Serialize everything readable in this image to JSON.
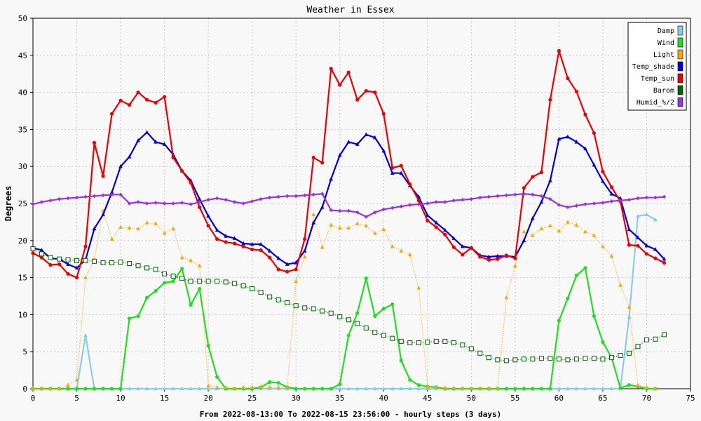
{
  "chart_data": {
    "type": "line",
    "title": "Weather in Essex",
    "xlabel": "From 2022-08-13:00 To 2022-08-15 23:56:00 - hourly steps (3 days)",
    "ylabel": "Degrees",
    "xlim": [
      0,
      75
    ],
    "ylim": [
      0,
      50
    ],
    "x_ticks": [
      0,
      5,
      10,
      15,
      20,
      25,
      30,
      35,
      40,
      45,
      50,
      55,
      60,
      65,
      70,
      75
    ],
    "y_ticks": [
      0,
      5,
      10,
      15,
      20,
      25,
      30,
      35,
      40,
      45,
      50
    ],
    "grid": true,
    "legend_position": "top-right",
    "series": [
      {
        "name": "Damp",
        "color": "#87ceeb",
        "marker": "triangle",
        "style": "solid",
        "values": [
          0,
          0,
          0,
          0,
          0,
          0,
          7.2,
          0,
          0,
          0,
          0,
          0,
          0,
          0,
          0,
          0,
          0,
          0,
          0,
          0,
          0,
          0,
          0,
          0,
          0,
          0,
          0,
          0,
          0,
          0,
          0,
          0,
          0,
          0,
          0,
          0,
          0,
          0,
          0,
          0,
          0,
          0,
          0,
          0,
          0,
          0,
          0,
          0,
          0,
          0,
          0,
          0,
          0,
          0,
          0,
          0,
          0,
          0,
          0,
          0,
          0,
          0,
          0,
          0,
          0,
          0,
          0,
          0,
          9.7,
          23.3,
          23.5,
          22.8
        ]
      },
      {
        "name": "Wind",
        "color": "#22dd22",
        "marker": "circle",
        "style": "solid",
        "values": [
          0,
          0,
          0,
          0,
          0,
          0,
          0,
          0,
          0,
          0,
          0,
          9.5,
          9.8,
          12.3,
          13.2,
          14.3,
          14.5,
          16.2,
          11.3,
          13.5,
          5.8,
          1.6,
          0,
          0,
          0,
          0,
          0.2,
          0.9,
          0.8,
          0.2,
          0,
          0,
          0,
          0,
          0,
          0.6,
          7.2,
          10.2,
          14.9,
          9.8,
          10.8,
          11.4,
          3.8,
          1.2,
          0.5,
          0.3,
          0.2,
          0,
          0,
          0,
          0,
          0,
          0,
          0,
          0,
          0,
          0,
          0,
          0,
          0,
          9.2,
          12.2,
          15.3,
          16.3,
          9.8,
          6.3,
          4.2,
          0.1,
          0.5,
          0.3,
          0,
          0
        ]
      },
      {
        "name": "Light",
        "color": "#ffa500",
        "marker": "triangle",
        "style": "dotted",
        "values": [
          0,
          0,
          0,
          0,
          0.5,
          1.2,
          15,
          17.5,
          24,
          20.2,
          21.8,
          21.7,
          21.6,
          22.4,
          22.3,
          21,
          21.6,
          17.7,
          17.3,
          16.6,
          0.4,
          0.2,
          0.2,
          0,
          0.2,
          0.2,
          0.3,
          0.2,
          0.2,
          0.2,
          14.5,
          17.8,
          23.5,
          19.1,
          22.1,
          21.7,
          21.7,
          22.3,
          22,
          21,
          21.5,
          19.2,
          18.6,
          18.1,
          13.6,
          0.3,
          0.2,
          0.1,
          0.1,
          0,
          0,
          0,
          0,
          0,
          12.3,
          16.6,
          21.2,
          20.7,
          21.6,
          22,
          21.3,
          22.5,
          22.1,
          21.2,
          20.7,
          19.2,
          17.9,
          14,
          11,
          0.5,
          0.2,
          0
        ]
      },
      {
        "name": "Temp_shade",
        "color": "#0000dd",
        "marker": "triangle",
        "style": "solid",
        "values": [
          19,
          18.7,
          17.6,
          17.5,
          16.8,
          16.3,
          17.4,
          21.6,
          23.5,
          26.5,
          30,
          31.3,
          33.5,
          34.6,
          33.3,
          33,
          31.6,
          29.4,
          28.1,
          25.6,
          23.3,
          21.4,
          20.6,
          20.3,
          19.6,
          19.5,
          19.5,
          18.6,
          17.6,
          16.8,
          17,
          18.6,
          22.4,
          24.5,
          28.3,
          31.5,
          33.3,
          33,
          34.3,
          33.9,
          32.1,
          29.1,
          29.1,
          27.4,
          25.9,
          23.4,
          22.4,
          21.4,
          20.3,
          19.2,
          19,
          18,
          17.8,
          17.9,
          17.9,
          17.8,
          20,
          23,
          25.2,
          28.1,
          33.7,
          34,
          33.3,
          32.4,
          30.2,
          28,
          26.3,
          25.7,
          21.5,
          20.4,
          19.3,
          18.8,
          17.5
        ]
      },
      {
        "name": "Temp_sun",
        "color": "#ee0000",
        "marker": "circle",
        "style": "solid",
        "values": [
          18.3,
          17.7,
          16.7,
          16.8,
          15.5,
          15,
          19.2,
          33.2,
          28.7,
          37.1,
          38.9,
          38.3,
          40,
          39,
          38.6,
          39.4,
          31.2,
          29.4,
          27.8,
          24.5,
          22,
          20.2,
          19.8,
          19.6,
          19.2,
          18.8,
          18.7,
          17.7,
          16.1,
          15.8,
          16.1,
          20.2,
          31.2,
          30.5,
          43.2,
          41,
          42.7,
          39,
          40.2,
          40,
          37.1,
          29.8,
          30.1,
          27.6,
          25.4,
          22.7,
          21.8,
          20.8,
          19.1,
          18.1,
          19,
          17.8,
          17.4,
          17.5,
          18,
          17.6,
          27.1,
          28.6,
          29.2,
          39,
          45.6,
          41.9,
          40.1,
          37,
          34.5,
          29.3,
          27.2,
          25.3,
          19.4,
          19.3,
          18.2,
          17.6,
          17
        ]
      },
      {
        "name": "Barom",
        "color": "#006400",
        "marker": "square-open",
        "style": "dotted",
        "values": [
          18.9,
          18.2,
          17.7,
          17.5,
          17.4,
          17.3,
          17.3,
          17.2,
          17,
          17,
          17.1,
          16.9,
          16.6,
          16.3,
          16.1,
          15.5,
          15.2,
          14.9,
          14.5,
          14.5,
          14.5,
          14.5,
          14.4,
          14.2,
          13.9,
          13.5,
          13,
          12.4,
          12,
          11.6,
          11.2,
          10.9,
          10.8,
          10.5,
          10.2,
          9.7,
          9.3,
          8.8,
          8.2,
          7.6,
          7.2,
          6.8,
          6.4,
          6.2,
          6.2,
          6.3,
          6.4,
          6.4,
          6.2,
          5.9,
          5.4,
          4.8,
          4.2,
          3.9,
          3.8,
          3.9,
          4,
          4,
          4.1,
          4.1,
          4,
          3.9,
          4,
          4.1,
          4.1,
          4,
          4.2,
          4.5,
          4.8,
          5.7,
          6.6,
          6.7,
          7.3
        ]
      },
      {
        "name": "Humid_%/2",
        "color": "#9933dd",
        "marker": "diamond",
        "style": "solid",
        "values": [
          24.9,
          25.2,
          25.4,
          25.6,
          25.7,
          25.8,
          25.9,
          26,
          26.1,
          26.2,
          26.2,
          25,
          25.2,
          25,
          25.1,
          25,
          25,
          25.1,
          24.9,
          25.2,
          25.5,
          25.7,
          25.5,
          25.2,
          25,
          25.3,
          25.6,
          25.8,
          25.9,
          26,
          26,
          26.1,
          26.2,
          26.3,
          24.1,
          24,
          24,
          23.8,
          23.2,
          23.8,
          24.2,
          24.4,
          24.6,
          24.8,
          24.9,
          25,
          25.2,
          25.2,
          25.4,
          25.5,
          25.6,
          25.8,
          25.9,
          26,
          26.1,
          26.2,
          26.3,
          26.2,
          26,
          25.6,
          24.8,
          24.5,
          24.7,
          24.9,
          25,
          25.1,
          25.3,
          25.4,
          25.5,
          25.7,
          25.8,
          25.8,
          25.9
        ]
      }
    ]
  }
}
